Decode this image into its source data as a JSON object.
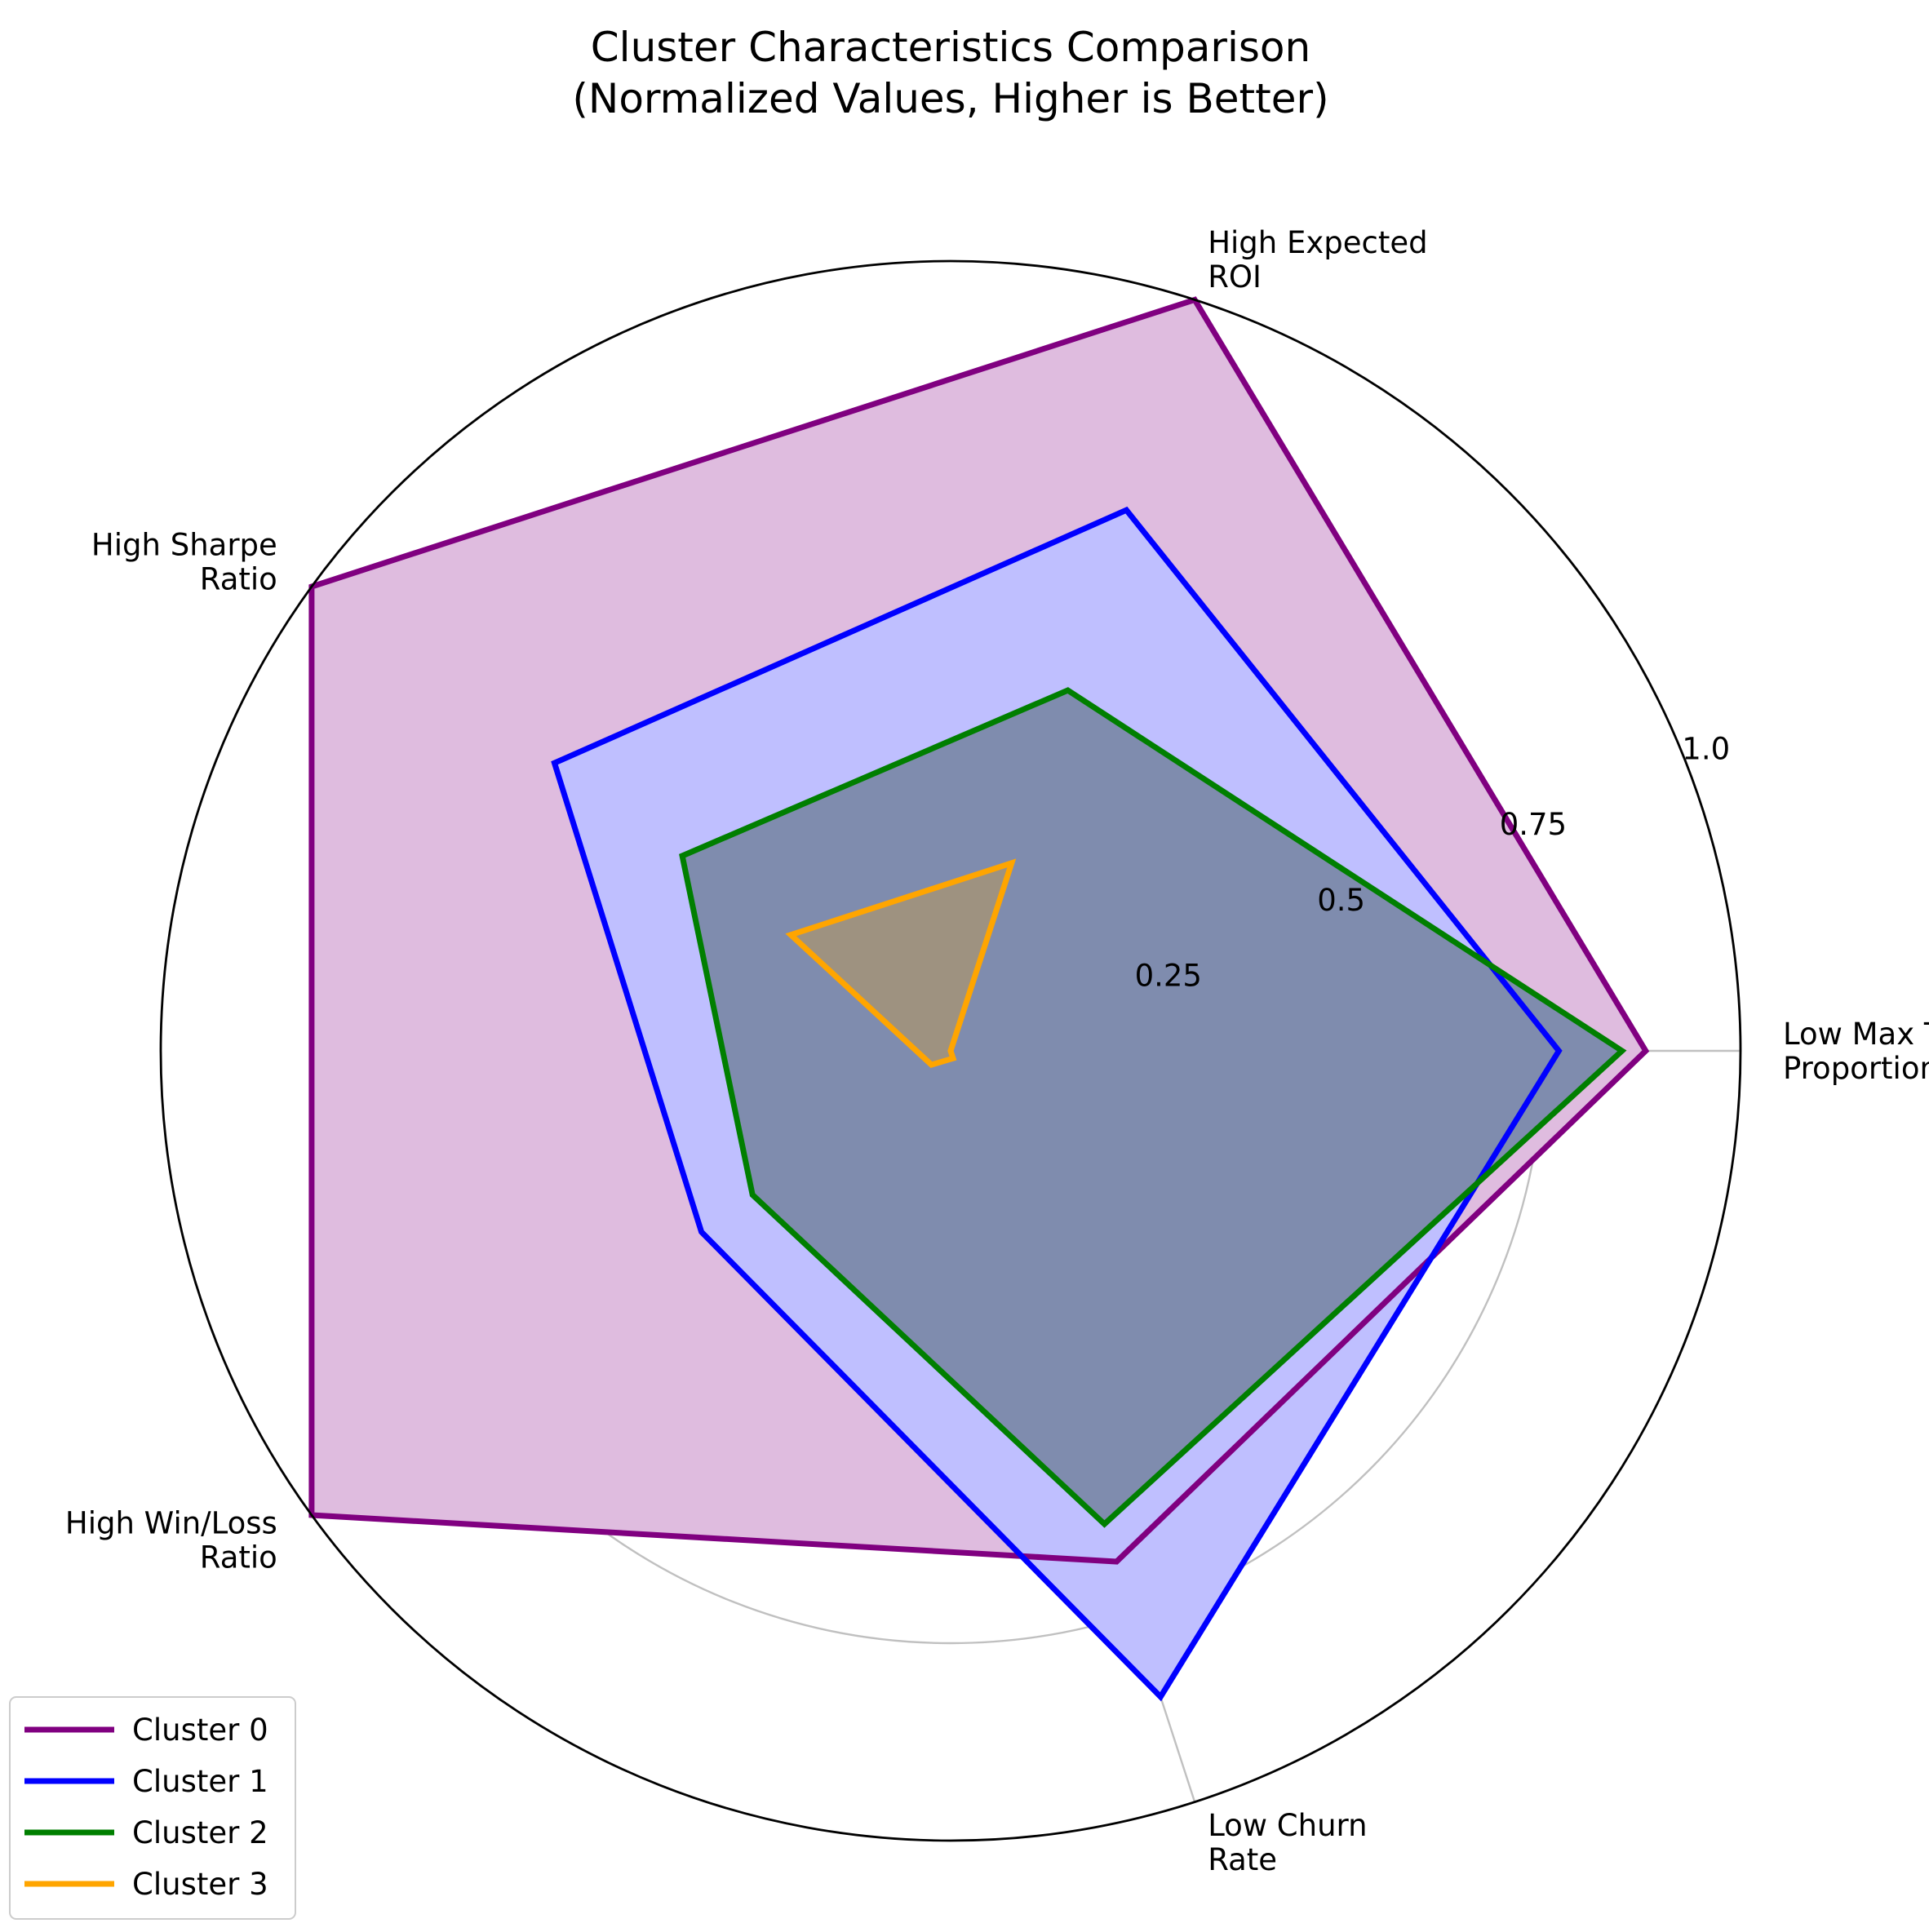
{
  "chart_data": {
    "type": "radar",
    "title": "Cluster Characteristics Comparison\n(Normalized Values, Higher is Better)",
    "axes": [
      "Low Max Trade\nProportion",
      "High Expected\nROI",
      "High Sharpe\nRatio",
      "High Win/Loss\nRatio",
      "Low Churn\nRate"
    ],
    "rlim": [
      0,
      1
    ],
    "rticks": [
      0.25,
      0.5,
      0.75,
      1.0
    ],
    "rtick_labels": [
      "0.25",
      "0.5",
      "0.75",
      "1.0"
    ],
    "grid": true,
    "legend_position": "lower-left",
    "series": [
      {
        "name": "Cluster 0",
        "values": [
          0.88,
          1.0,
          1.0,
          1.0,
          0.68
        ],
        "color": "#800080",
        "fill": "#DFBCDF"
      },
      {
        "name": "Cluster 1",
        "values": [
          0.77,
          0.72,
          0.62,
          0.39,
          0.86
        ],
        "color": "#0000FF",
        "fill": "#BFBFFF"
      },
      {
        "name": "Cluster 2",
        "values": [
          0.85,
          0.48,
          0.42,
          0.31,
          0.63
        ],
        "color": "#007F00",
        "fill": "#7F8CAE"
      },
      {
        "name": "Cluster 3",
        "values": [
          0.0,
          0.25,
          0.25,
          0.03,
          0.01
        ],
        "color": "#FFA500",
        "fill": "#9E9280"
      }
    ]
  }
}
